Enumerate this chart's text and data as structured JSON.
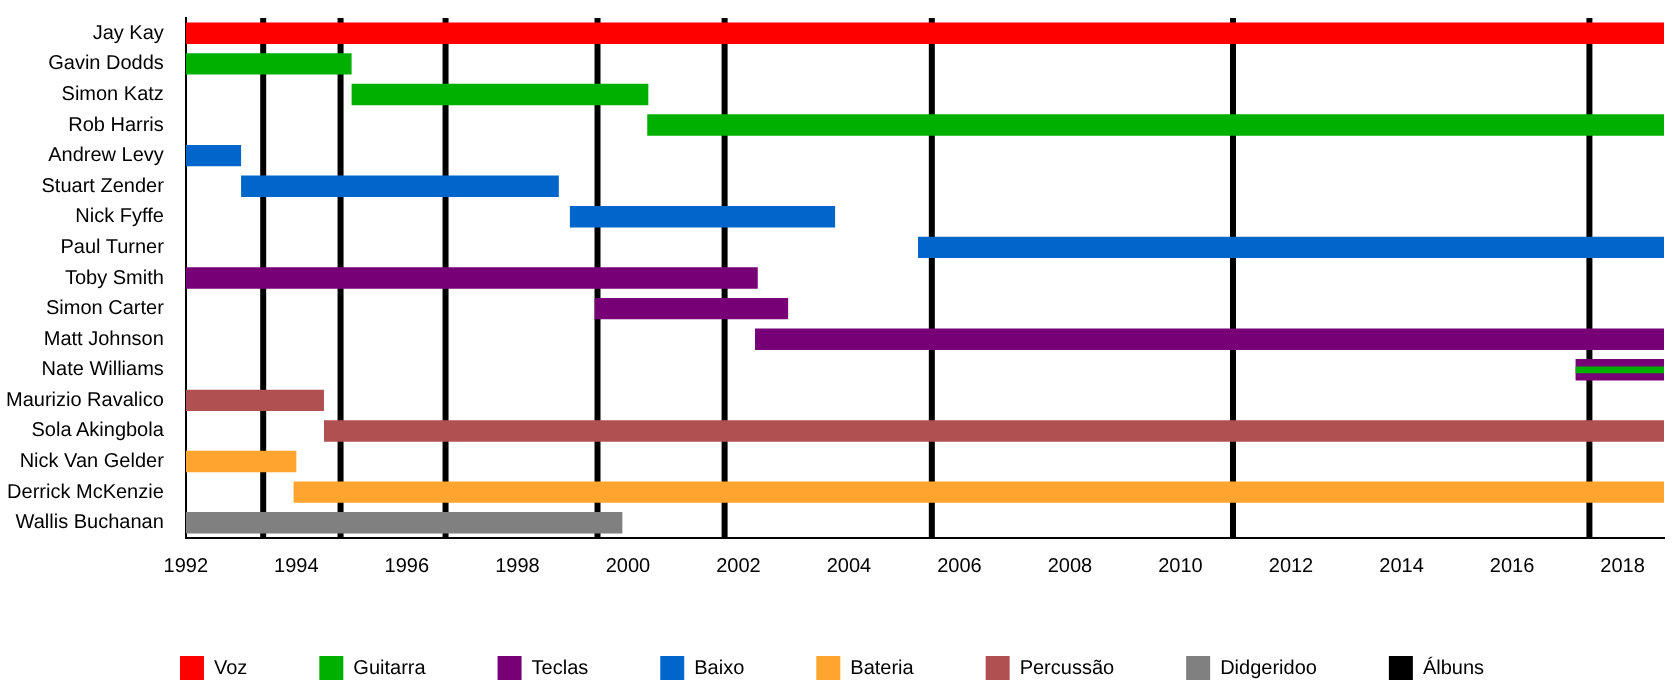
{
  "chart_data": {
    "type": "bar",
    "orientation": "horizontal",
    "categories": [
      "Jay Kay",
      "Gavin Dodds",
      "Simon Katz",
      "Rob Harris",
      "Andrew Levy",
      "Stuart Zender",
      "Nick Fyffe",
      "Paul Turner",
      "Toby Smith",
      "Simon Carter",
      "Matt Johnson",
      "Nate Williams",
      "Maurizio Ravalico",
      "Sola Akingbola",
      "Nick Van Gelder",
      "Derrick McKenzie",
      "Wallis Buchanan"
    ],
    "series": [
      {
        "name": "Voz",
        "color": "#ff0000",
        "base": [
          1992,
          null,
          null,
          null,
          null,
          null,
          null,
          null,
          null,
          null,
          null,
          null,
          null,
          null,
          null,
          null,
          null
        ],
        "values": [
          26.75,
          null,
          null,
          null,
          null,
          null,
          null,
          null,
          null,
          null,
          null,
          null,
          null,
          null,
          null,
          null,
          null
        ]
      },
      {
        "name": "Guitarra",
        "color": "#00b000",
        "base": [
          null,
          1992,
          1995,
          2000.35,
          null,
          null,
          null,
          null,
          null,
          null,
          null,
          null,
          null,
          null,
          null,
          null,
          null
        ],
        "values": [
          null,
          3.0,
          5.37,
          18.4,
          null,
          null,
          null,
          null,
          null,
          null,
          null,
          null,
          null,
          null,
          null,
          null,
          null
        ]
      },
      {
        "name": "Teclas",
        "color": "#770077",
        "base": [
          null,
          null,
          null,
          null,
          null,
          null,
          null,
          null,
          1992,
          1999.4,
          2002.3,
          2017.15,
          null,
          null,
          null,
          null,
          null
        ],
        "values": [
          null,
          null,
          null,
          null,
          null,
          null,
          null,
          null,
          10.35,
          3.5,
          16.45,
          1.6,
          null,
          null,
          null,
          null,
          null
        ]
      },
      {
        "color": "#00b000",
        "base": [
          null,
          null,
          null,
          null,
          null,
          null,
          null,
          null,
          null,
          null,
          null,
          2017.15,
          null,
          null,
          null,
          null,
          null
        ],
        "values": [
          null,
          null,
          null,
          null,
          null,
          null,
          null,
          null,
          null,
          null,
          null,
          1.6,
          null,
          null,
          null,
          null,
          null
        ]
      },
      {
        "name": "Baixo",
        "color": "#0066cc",
        "base": [
          null,
          null,
          null,
          null,
          1992,
          1993,
          1998.95,
          2005.25,
          null,
          null,
          null,
          null,
          null,
          null,
          null,
          null,
          null
        ],
        "values": [
          null,
          null,
          null,
          null,
          1.0,
          5.75,
          4.8,
          13.5,
          null,
          null,
          null,
          null,
          null,
          null,
          null,
          null,
          null
        ]
      },
      {
        "name": "Bateria",
        "color": "#ffa52f",
        "base": [
          null,
          null,
          null,
          null,
          null,
          null,
          null,
          null,
          null,
          null,
          null,
          null,
          null,
          null,
          1992,
          1993.95,
          null
        ],
        "values": [
          null,
          null,
          null,
          null,
          null,
          null,
          null,
          null,
          null,
          null,
          null,
          null,
          null,
          null,
          2.0,
          24.8,
          null
        ]
      },
      {
        "name": "Percussão",
        "color": "#b05050",
        "base": [
          null,
          null,
          null,
          null,
          null,
          null,
          null,
          null,
          null,
          null,
          null,
          null,
          1992,
          1994.5,
          null,
          null,
          null
        ],
        "values": [
          null,
          null,
          null,
          null,
          null,
          null,
          null,
          null,
          null,
          null,
          null,
          null,
          2.5,
          24.25,
          null,
          null,
          null
        ]
      },
      {
        "name": "Didgeridoo",
        "color": "#808080",
        "base": [
          null,
          null,
          null,
          null,
          null,
          null,
          null,
          null,
          null,
          null,
          null,
          null,
          null,
          null,
          null,
          null,
          1992
        ],
        "values": [
          null,
          null,
          null,
          null,
          null,
          null,
          null,
          null,
          null,
          null,
          null,
          null,
          null,
          null,
          null,
          null,
          7.9
        ]
      }
    ],
    "ref_lines": [
      {
        "axis": "x",
        "value": 1993.4,
        "label": "Álbuns",
        "color": "#000000"
      },
      {
        "axis": "x",
        "value": 1994.8,
        "color": "#000000"
      },
      {
        "axis": "x",
        "value": 1996.7,
        "color": "#000000"
      },
      {
        "axis": "x",
        "value": 1999.45,
        "color": "#000000"
      },
      {
        "axis": "x",
        "value": 2001.75,
        "color": "#000000"
      },
      {
        "axis": "x",
        "value": 2005.5,
        "color": "#000000"
      },
      {
        "axis": "x",
        "value": 2010.95,
        "color": "#000000"
      },
      {
        "axis": "x",
        "value": 2017.4,
        "color": "#000000"
      }
    ],
    "xlim": [
      1992,
      2018.75
    ],
    "xticks": [
      1992,
      1994,
      1996,
      1998,
      2000,
      2002,
      2004,
      2006,
      2008,
      2010,
      2012,
      2014,
      2016,
      2018
    ],
    "grid": false,
    "legend": "bottom"
  }
}
